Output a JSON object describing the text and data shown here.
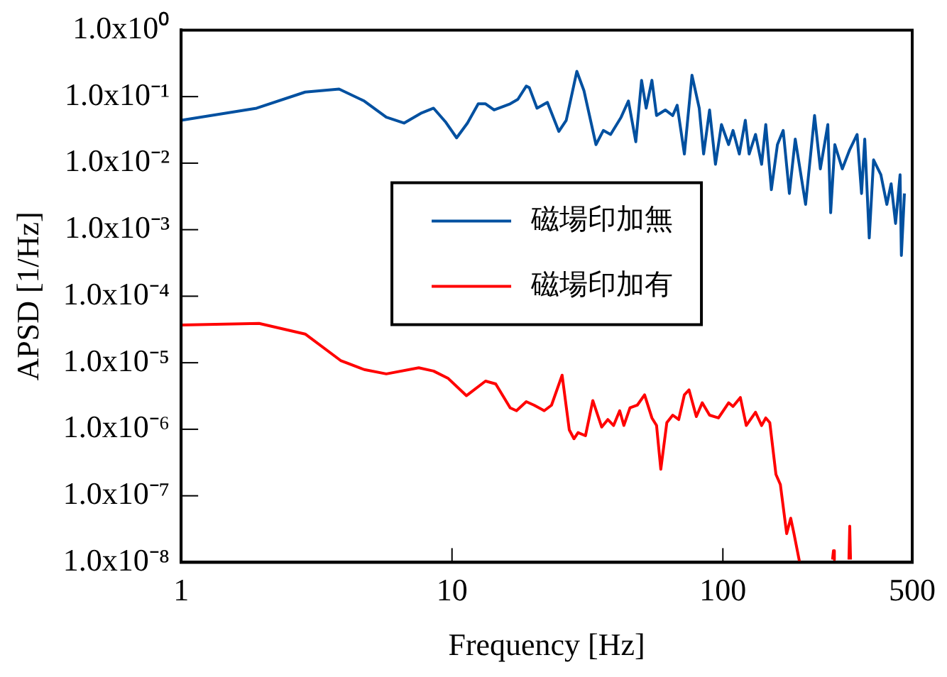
{
  "chart_data": {
    "type": "line",
    "xlabel": "Frequency [Hz]",
    "ylabel": "APSD [1/Hz]",
    "log": "xy",
    "xlim": [
      1,
      500
    ],
    "xticks": [
      1,
      10,
      100,
      500
    ],
    "ylim": [
      1e-08,
      1
    ],
    "yticks": [
      {
        "value": 1e-08,
        "label": "1.0x10⁻⁸"
      },
      {
        "value": 1e-07,
        "label": "1.0x10⁻⁷"
      },
      {
        "value": 1e-06,
        "label": "1.0x10⁻⁶"
      },
      {
        "value": 1e-05,
        "label": "1.0x10⁻⁵"
      },
      {
        "value": 0.0001,
        "label": "1.0x10⁻⁴"
      },
      {
        "value": 0.001,
        "label": "1.0x10⁻³"
      },
      {
        "value": 0.01,
        "label": "1.0x10⁻²"
      },
      {
        "value": 0.1,
        "label": "1.0x10⁻¹"
      },
      {
        "value": 1,
        "label": "1.0x10⁰"
      }
    ],
    "grid": false,
    "legend": "center",
    "marker": "none",
    "line_style": "solid",
    "series": [
      {
        "name": "磁場印加無",
        "color": "#0050a0",
        "x": [
          1,
          1.9,
          2.87,
          3.83,
          4.74,
          5.72,
          6.65,
          7.73,
          8.55,
          9.45,
          10.4,
          11.4,
          12.5,
          13.3,
          14.3,
          16.4,
          17.5,
          18.8,
          19.3,
          20.6,
          22.5,
          24.8,
          26.4,
          28.9,
          30.7,
          34.0,
          36.2,
          38.5,
          42.1,
          44.8,
          47.7,
          50.1,
          52.1,
          54.7,
          56.9,
          61.3,
          65.3,
          67.8,
          72.1,
          76.9,
          81.8,
          84.9,
          89.3,
          93.9,
          98.8,
          105,
          109,
          115,
          121,
          125,
          132,
          139,
          144,
          151,
          159,
          167,
          176,
          185,
          202,
          218,
          229,
          244,
          250,
          259,
          276,
          294,
          313,
          325,
          334,
          347,
          360,
          383,
          403,
          418,
          434,
          451,
          456,
          468
        ],
        "values": [
          0.044,
          0.067,
          0.117,
          0.13,
          0.086,
          0.049,
          0.04,
          0.057,
          0.067,
          0.042,
          0.024,
          0.04,
          0.078,
          0.078,
          0.063,
          0.078,
          0.091,
          0.144,
          0.136,
          0.067,
          0.082,
          0.03,
          0.044,
          0.24,
          0.123,
          0.019,
          0.031,
          0.027,
          0.049,
          0.086,
          0.021,
          0.176,
          0.067,
          0.176,
          0.052,
          0.063,
          0.052,
          0.074,
          0.0137,
          0.21,
          0.067,
          0.0137,
          0.063,
          0.0096,
          0.038,
          0.019,
          0.031,
          0.0137,
          0.044,
          0.0137,
          0.027,
          0.0096,
          0.038,
          0.004,
          0.019,
          0.031,
          0.0035,
          0.023,
          0.0024,
          0.052,
          0.0082,
          0.038,
          0.0018,
          0.019,
          0.0082,
          0.016,
          0.027,
          0.0035,
          0.023,
          0.00075,
          0.0112,
          0.0067,
          0.0024,
          0.0049,
          0.00124,
          0.0067,
          0.00041,
          0.0035
        ]
      },
      {
        "name": "磁場印加有",
        "color": "#ff0000",
        "x": [
          1,
          1.94,
          2.87,
          3.88,
          4.74,
          5.72,
          7.54,
          8.55,
          9.69,
          11.3,
          13.3,
          14.5,
          16.4,
          17.3,
          18.8,
          20.1,
          21.9,
          23.3,
          25.5,
          27.1,
          28.2,
          29.2,
          31.1,
          33.1,
          35.7,
          37.6,
          39.5,
          41.6,
          43.1,
          45.4,
          48.3,
          51.4,
          54.7,
          56.9,
          59.0,
          62.1,
          65.3,
          68.7,
          72.1,
          75.0,
          79.8,
          83.9,
          89.3,
          96.3,
          105,
          109,
          116,
          122,
          132,
          139,
          144,
          149,
          157,
          163,
          172,
          178,
          183,
          192,
          220,
          254,
          256,
          258,
          275,
          292,
          294,
          296
        ],
        "values": [
          3.7e-05,
          3.9e-05,
          2.7e-05,
          1.08e-05,
          7.9e-06,
          6.8e-06,
          8.4e-06,
          7.5e-06,
          5.8e-06,
          3.2e-06,
          5.3e-06,
          4.8e-06,
          2.1e-06,
          1.9e-06,
          2.6e-06,
          2.3e-06,
          1.9e-06,
          2.3e-06,
          6.5e-06,
          9.8e-07,
          7.2e-07,
          8.9e-07,
          8e-07,
          2.7e-06,
          1.08e-06,
          1.4e-06,
          1.14e-06,
          1.9e-06,
          1.14e-06,
          2.1e-06,
          2.3e-06,
          3.3e-06,
          1.48e-06,
          1.14e-06,
          2.5e-07,
          1.26e-06,
          1.63e-06,
          1.4e-06,
          3.3e-06,
          3.9e-06,
          1.55e-06,
          2.5e-06,
          1.63e-06,
          1.48e-06,
          2.5e-06,
          2.2e-06,
          3e-06,
          1.14e-06,
          1.8e-06,
          1.14e-06,
          1.48e-06,
          1.26e-06,
          2.1e-07,
          1.48e-07,
          2.7e-08,
          4.6e-08,
          2.7e-08,
          1e-08,
          null,
          1.1e-08,
          1.5e-08,
          1.1e-08,
          null,
          1.1e-08,
          3.5e-08,
          1.1e-08
        ]
      }
    ]
  }
}
